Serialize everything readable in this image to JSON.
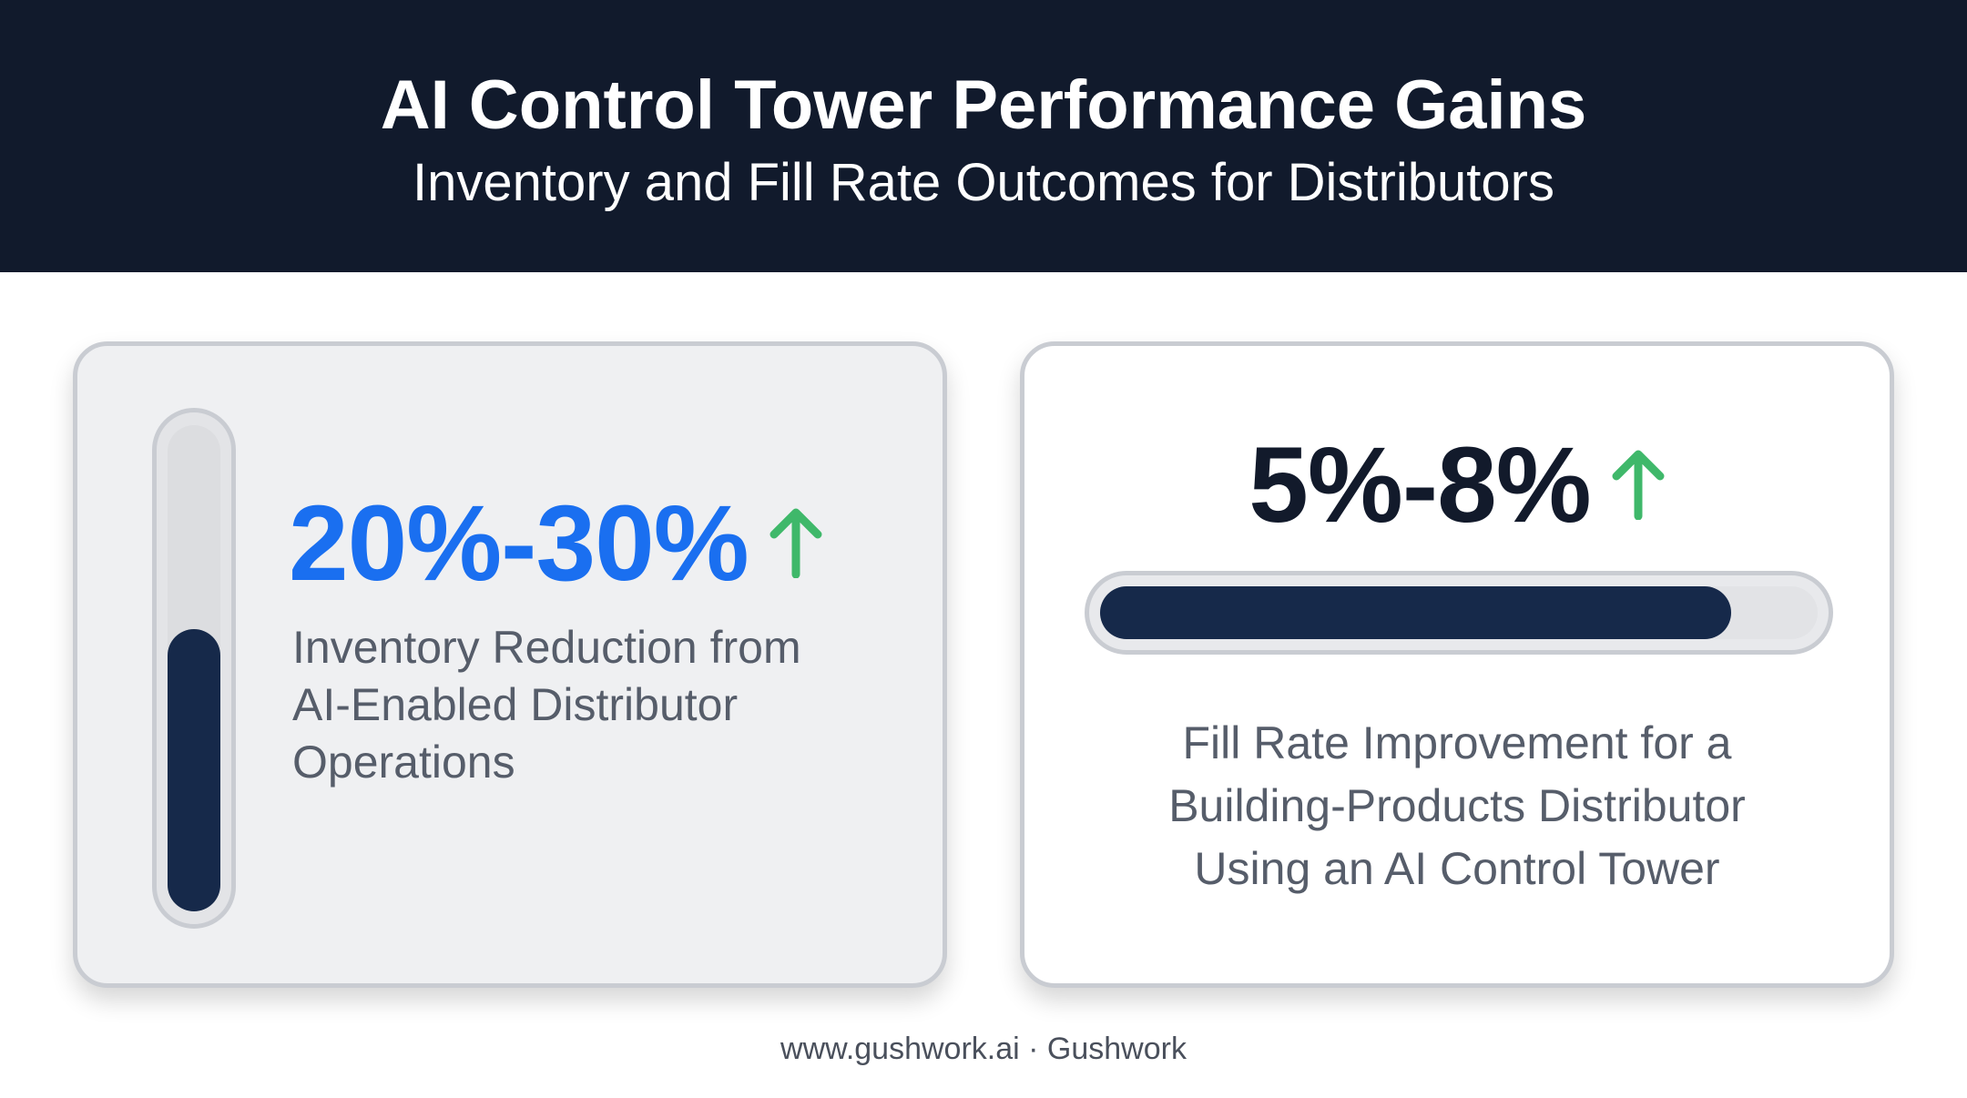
{
  "header": {
    "title": "AI Control Tower Performance Gains",
    "subtitle": "Inventory and Fill Rate Outcomes for Distributors"
  },
  "colors": {
    "header_bg": "#111a2c",
    "accent_blue": "#1a6ff0",
    "gauge_fill": "#16294a",
    "arrow_green": "#3fb86a",
    "dark_text": "#121a2b"
  },
  "cards": {
    "inventory": {
      "metric": "20%-30%",
      "trend_icon": "arrow-up-icon",
      "description_lines": [
        "Inventory Reduction from",
        "AI-Enabled Distributor",
        "Operations"
      ],
      "gauge_level": 0.58
    },
    "fill_rate": {
      "metric": "5%-8%",
      "trend_icon": "arrow-up-icon",
      "gauge_level": 0.88,
      "description_lines": [
        "Fill Rate Improvement for a",
        "Building-Products Distributor",
        "Using an AI Control Tower"
      ]
    }
  },
  "footer": {
    "text": "www.gushwork.ai · Gushwork"
  }
}
